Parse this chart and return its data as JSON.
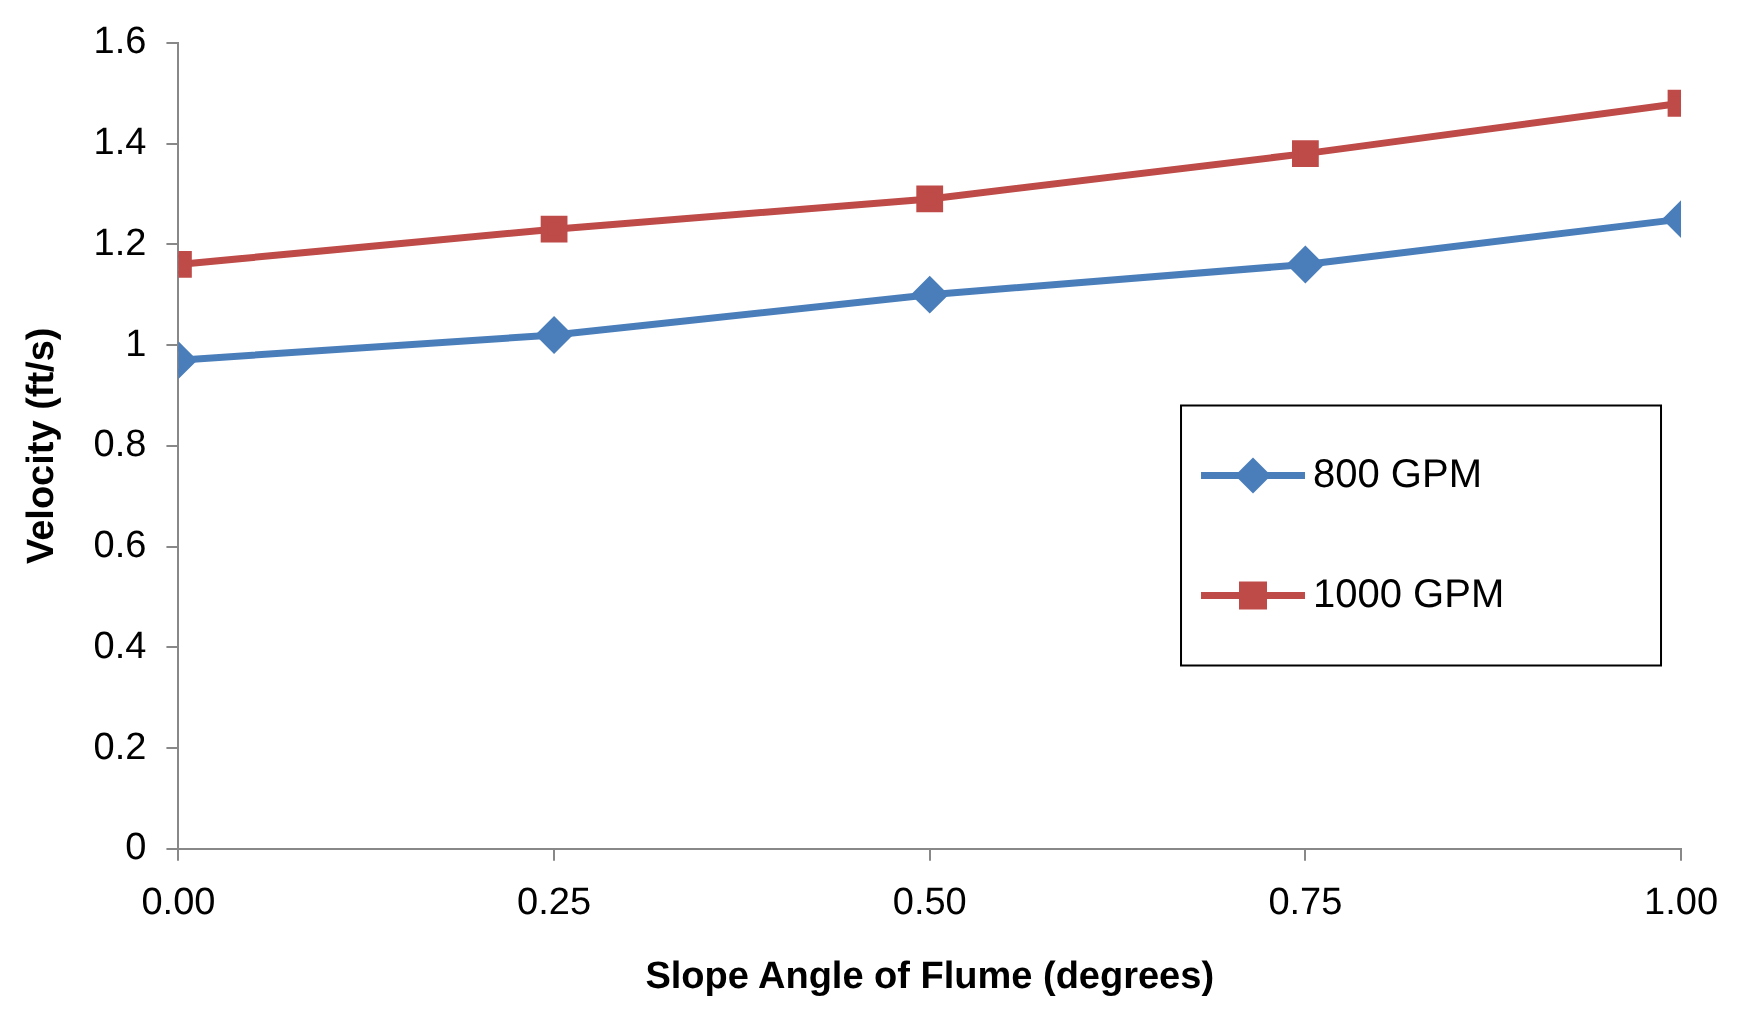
{
  "chart_data": {
    "type": "line",
    "xlabel": "Slope Angle of Flume (degrees)",
    "ylabel": "Velocity (ft/s)",
    "x": [
      0,
      0.25,
      0.5,
      0.75,
      1
    ],
    "series": [
      {
        "name": "800 GPM",
        "color": "#4a7ebb",
        "marker": "diamond",
        "values": [
          0.97,
          1.02,
          1.1,
          1.16,
          1.25
        ]
      },
      {
        "name": "1000 GPM",
        "color": "#be4b48",
        "marker": "square",
        "values": [
          1.16,
          1.23,
          1.29,
          1.38,
          1.48
        ]
      }
    ],
    "xlim": [
      0,
      1
    ],
    "xticks": [
      {
        "value": 0,
        "label": "0.00"
      },
      {
        "value": 0.25,
        "label": "0.25"
      },
      {
        "value": 0.5,
        "label": "0.50"
      },
      {
        "value": 0.75,
        "label": "0.75"
      },
      {
        "value": 1,
        "label": "1.00"
      }
    ],
    "ylim": [
      0,
      1.6
    ],
    "yticks": [
      0,
      0.2,
      0.4,
      0.6,
      0.8,
      1,
      1.2,
      1.4,
      1.6
    ],
    "grid": false,
    "legend": "right",
    "line_style": "solid"
  }
}
